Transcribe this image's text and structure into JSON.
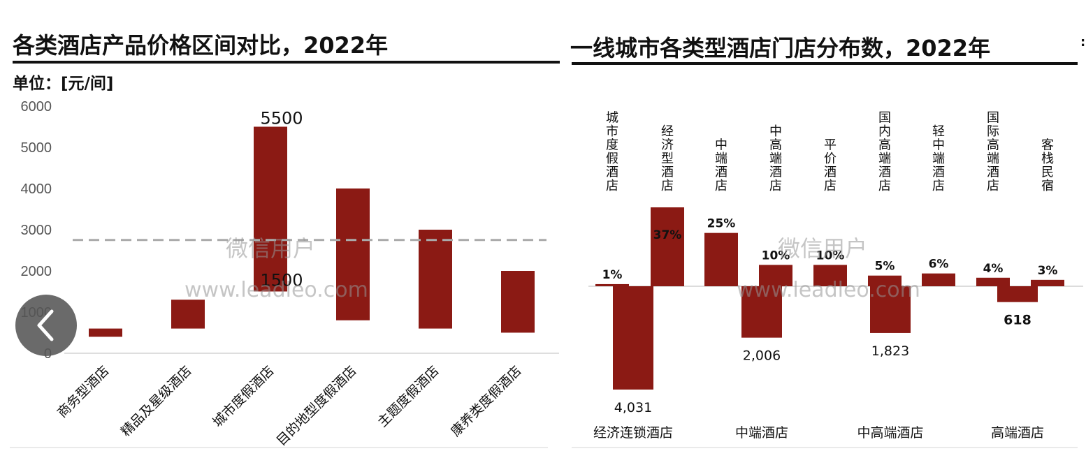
{
  "left_panel": {
    "title": "各类酒店产品价格区间对比，2022年",
    "unit": "单位：[元/间]"
  },
  "right_panel": {
    "title": "一线城市各类型酒店门店分布数，2022年"
  },
  "watermarks": {
    "text_cn": "微信用户",
    "text_url": "www.leadleo.com"
  },
  "colors": {
    "bar": "#8b1a14",
    "reference_line": "#aaaaaa"
  },
  "nav": {
    "back_icon": "chevron-left-icon"
  },
  "chart_data": [
    {
      "type": "floating-bar",
      "title": "各类酒店产品价格区间对比，2022年",
      "ylabel": "单位：[元/间]",
      "ylim": [
        0,
        6000
      ],
      "yticks": [
        "0",
        "1000",
        "2000",
        "3000",
        "4000",
        "5000",
        "6000"
      ],
      "categories": [
        "商务型酒店",
        "精品及星级酒店",
        "城市度假酒店",
        "目的地型度假酒店",
        "主题度假酒店",
        "康养类度假酒店"
      ],
      "low": [
        400,
        600,
        1500,
        800,
        600,
        500
      ],
      "high": [
        600,
        1300,
        5500,
        4000,
        3000,
        2000
      ],
      "data_labels": [
        {
          "category": "城市度假酒店",
          "high": "5500",
          "low": "1500"
        }
      ],
      "reference_line": 2750
    },
    {
      "type": "bar",
      "title": "一线城市各类型酒店门店分布数，2022年",
      "groups": [
        {
          "name": "经济连锁酒店",
          "total": 4031,
          "total_label": "4,031",
          "sub": [
            {
              "name": "城市度假酒店",
              "share": 1,
              "share_label": "1%"
            },
            {
              "name": "经济型酒店",
              "share": 37,
              "share_label": "37%"
            }
          ]
        },
        {
          "name": "中端酒店",
          "total": 2006,
          "total_label": "2,006",
          "sub": [
            {
              "name": "中端酒店",
              "share": 25,
              "share_label": "25%"
            },
            {
              "name": "中高端酒店",
              "share": 10,
              "share_label": "10%"
            }
          ]
        },
        {
          "name": "中高端酒店",
          "total": 1823,
          "total_label": "1,823",
          "sub": [
            {
              "name": "平价酒店",
              "share": 10,
              "share_label": "10%"
            },
            {
              "name": "国内高端酒店",
              "share": 5,
              "share_label": "5%"
            }
          ]
        },
        {
          "name": "高端酒店",
          "total": 618,
          "total_label": "618",
          "sub": [
            {
              "name": "轻中端酒店",
              "share": 6,
              "share_label": "6%"
            },
            {
              "name": "国际高端酒店",
              "share": 4,
              "share_label": "4%"
            },
            {
              "name": "客栈民宿",
              "share": 3,
              "share_label": "3%"
            }
          ]
        }
      ]
    }
  ]
}
